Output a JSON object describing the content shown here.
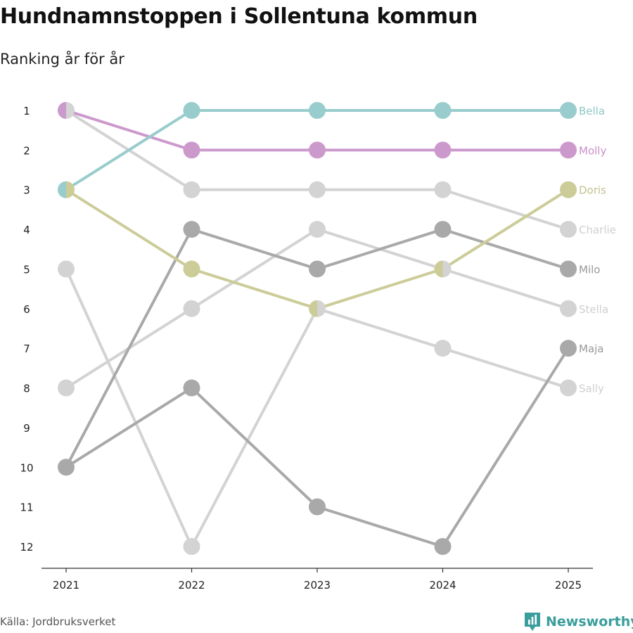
{
  "header": {
    "title": "Hundnamnstoppen i Sollentuna kommun",
    "subtitle": "Ranking år för år"
  },
  "footer": {
    "source": "Källa: Jordbruksverket",
    "brand": "Newsworthy",
    "brand_icon": "newsworthy-logo-icon"
  },
  "chart_data": {
    "type": "line",
    "subtype": "bump",
    "title": "Hundnamnstoppen i Sollentuna kommun",
    "subtitle": "Ranking år för år",
    "x": [
      "2021",
      "2022",
      "2023",
      "2024",
      "2025"
    ],
    "ylim": [
      1,
      12
    ],
    "y_inverted": true,
    "y_ticks": [
      "1",
      "2",
      "3",
      "4",
      "5",
      "6",
      "7",
      "8",
      "9",
      "10",
      "11",
      "12"
    ],
    "xlabel": "",
    "ylabel": "",
    "grid": false,
    "series": [
      {
        "name": "Charlie",
        "values": [
          1,
          3,
          3,
          3,
          4
        ],
        "color": "#d3d3d3"
      },
      {
        "name": "Stella",
        "values": [
          8,
          6,
          4,
          5,
          6
        ],
        "color": "#d3d3d3"
      },
      {
        "name": "Sally",
        "values": [
          5,
          12,
          6,
          7,
          8
        ],
        "color": "#d3d3d3"
      },
      {
        "name": "Milo",
        "values": [
          10,
          4,
          5,
          4,
          5
        ],
        "color": "#a9a9a9"
      },
      {
        "name": "Maja",
        "values": [
          10,
          8,
          11,
          12,
          7
        ],
        "color": "#a9a9a9"
      },
      {
        "name": "Doris",
        "values": [
          3,
          5,
          6,
          5,
          3
        ],
        "color": "#cccc99"
      },
      {
        "name": "Molly",
        "values": [
          1,
          2,
          2,
          2,
          2
        ],
        "color": "#cc99cc"
      },
      {
        "name": "Bella",
        "values": [
          3,
          1,
          1,
          1,
          1
        ],
        "color": "#99cccc"
      }
    ],
    "label_colors": {
      "Charlie": "#cfcfcf",
      "Stella": "#cfcfcf",
      "Sally": "#cfcfcf",
      "Milo": "#999999",
      "Maja": "#999999",
      "Doris": "#c2c28e",
      "Molly": "#c98fc9",
      "Bella": "#8fc7c7"
    }
  }
}
